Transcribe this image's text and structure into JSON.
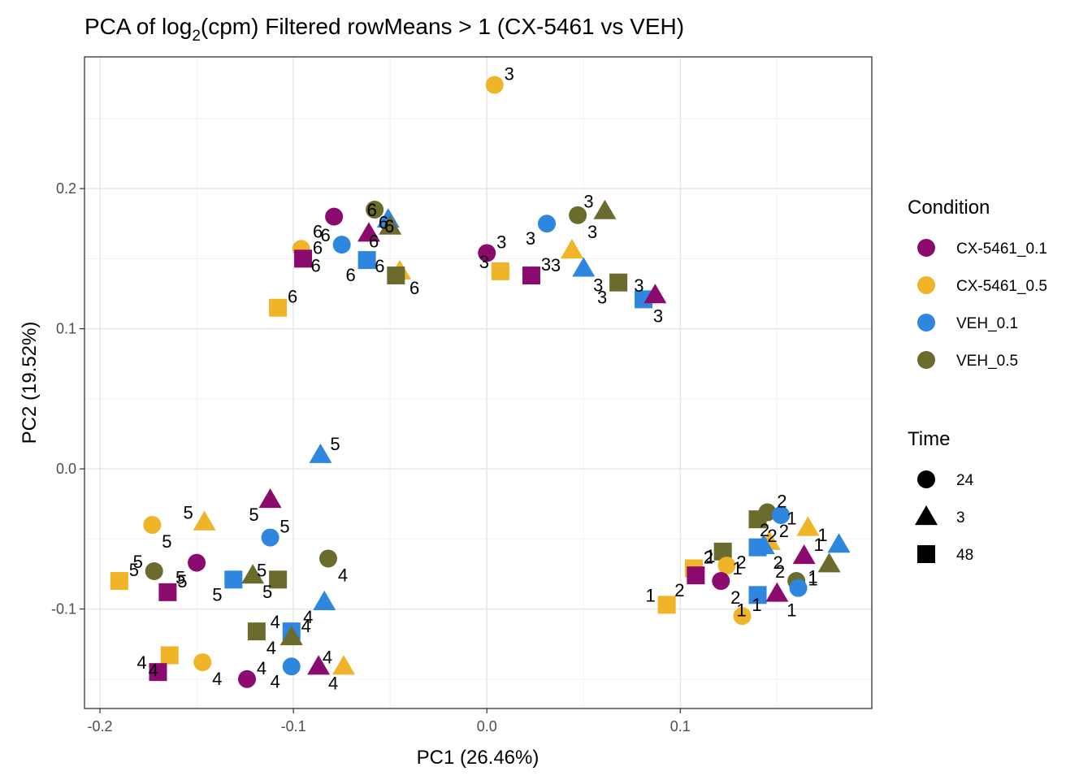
{
  "chart_data": {
    "type": "scatter",
    "title_main": "PCA of log",
    "title_sub": "2",
    "title_rest": "(cpm) Filtered rowMeans > 1 (CX-5461 vs VEH)",
    "xlabel": "PC1 (26.46%)",
    "ylabel": "PC2 (19.52%)",
    "xlim": [
      -0.208,
      0.199
    ],
    "ylim": [
      -0.171,
      0.294
    ],
    "xticks": [
      -0.2,
      -0.1,
      0.0,
      0.1
    ],
    "xtick_labels": [
      "-0.2",
      "-0.1",
      "0.0",
      "0.1"
    ],
    "yticks": [
      -0.1,
      0.0,
      0.1,
      0.2
    ],
    "ytick_labels": [
      "-0.1",
      "0.0",
      "0.1",
      "0.2"
    ],
    "grid": true,
    "legend_position": "right",
    "legend_condition": {
      "title": "Condition",
      "items": [
        {
          "label": "CX-5461_0.1",
          "color": "#8B0A6E"
        },
        {
          "label": "CX-5461_0.5",
          "color": "#F0B429"
        },
        {
          "label": "VEH_0.1",
          "color": "#2E86DE"
        },
        {
          "label": "VEH_0.5",
          "color": "#6B6B2E"
        }
      ]
    },
    "legend_time": {
      "title": "Time",
      "items": [
        {
          "label": "24",
          "shape": "circle"
        },
        {
          "label": "3",
          "shape": "triangle"
        },
        {
          "label": "48",
          "shape": "square"
        }
      ]
    },
    "points": [
      {
        "x": 0.004,
        "y": 0.274,
        "condition": "CX-5461_0.5",
        "time": "24",
        "label": "3"
      },
      {
        "x": -0.079,
        "y": 0.18,
        "condition": "CX-5461_0.1",
        "time": "24",
        "label": "6"
      },
      {
        "x": -0.058,
        "y": 0.185,
        "condition": "VEH_0.5",
        "time": "24",
        "label": "6"
      },
      {
        "x": -0.051,
        "y": 0.178,
        "condition": "VEH_0.1",
        "time": "3",
        "label": "6"
      },
      {
        "x": -0.061,
        "y": 0.168,
        "condition": "CX-5461_0.1",
        "time": "3",
        "label": "6"
      },
      {
        "x": -0.05,
        "y": 0.173,
        "condition": "VEH_0.5",
        "time": "3",
        "label": "6"
      },
      {
        "x": -0.096,
        "y": 0.157,
        "condition": "CX-5461_0.5",
        "time": "24",
        "label": "6"
      },
      {
        "x": -0.075,
        "y": 0.16,
        "condition": "VEH_0.1",
        "time": "24",
        "label": "6"
      },
      {
        "x": -0.095,
        "y": 0.15,
        "condition": "CX-5461_0.1",
        "time": "48",
        "label": "6"
      },
      {
        "x": -0.062,
        "y": 0.149,
        "condition": "VEH_0.1",
        "time": "48",
        "label": "6"
      },
      {
        "x": -0.045,
        "y": 0.141,
        "condition": "CX-5461_0.5",
        "time": "3",
        "label": "6"
      },
      {
        "x": -0.047,
        "y": 0.138,
        "condition": "VEH_0.5",
        "time": "48",
        "label": "6"
      },
      {
        "x": -0.108,
        "y": 0.115,
        "condition": "CX-5461_0.5",
        "time": "48",
        "label": "6"
      },
      {
        "x": 0.031,
        "y": 0.175,
        "condition": "VEH_0.1",
        "time": "24",
        "label": "3"
      },
      {
        "x": 0.047,
        "y": 0.181,
        "condition": "VEH_0.5",
        "time": "24",
        "label": "3"
      },
      {
        "x": 0.061,
        "y": 0.184,
        "condition": "VEH_0.5",
        "time": "3",
        "label": "3"
      },
      {
        "x": 0.0,
        "y": 0.154,
        "condition": "CX-5461_0.1",
        "time": "24",
        "label": "3"
      },
      {
        "x": 0.044,
        "y": 0.156,
        "condition": "CX-5461_0.5",
        "time": "3",
        "label": "3"
      },
      {
        "x": 0.05,
        "y": 0.143,
        "condition": "VEH_0.1",
        "time": "3",
        "label": "3"
      },
      {
        "x": 0.007,
        "y": 0.141,
        "condition": "CX-5461_0.5",
        "time": "48",
        "label": "3"
      },
      {
        "x": 0.023,
        "y": 0.138,
        "condition": "CX-5461_0.1",
        "time": "48",
        "label": "3"
      },
      {
        "x": 0.068,
        "y": 0.133,
        "condition": "VEH_0.5",
        "time": "48",
        "label": "3"
      },
      {
        "x": 0.081,
        "y": 0.121,
        "condition": "VEH_0.1",
        "time": "48",
        "label": "3"
      },
      {
        "x": 0.087,
        "y": 0.124,
        "condition": "CX-5461_0.1",
        "time": "3",
        "label": "3"
      },
      {
        "x": -0.086,
        "y": 0.01,
        "condition": "VEH_0.1",
        "time": "3",
        "label": "5"
      },
      {
        "x": -0.112,
        "y": -0.022,
        "condition": "CX-5461_0.1",
        "time": "3",
        "label": "5"
      },
      {
        "x": -0.173,
        "y": -0.04,
        "condition": "CX-5461_0.5",
        "time": "24",
        "label": "5"
      },
      {
        "x": -0.146,
        "y": -0.038,
        "condition": "CX-5461_0.5",
        "time": "3",
        "label": "5"
      },
      {
        "x": -0.112,
        "y": -0.049,
        "condition": "VEH_0.1",
        "time": "24",
        "label": "5"
      },
      {
        "x": -0.15,
        "y": -0.067,
        "condition": "CX-5461_0.1",
        "time": "24",
        "label": "5"
      },
      {
        "x": -0.082,
        "y": -0.064,
        "condition": "VEH_0.5",
        "time": "24",
        "label": "4"
      },
      {
        "x": -0.172,
        "y": -0.073,
        "condition": "VEH_0.5",
        "time": "24",
        "label": "5"
      },
      {
        "x": -0.19,
        "y": -0.08,
        "condition": "CX-5461_0.5",
        "time": "48",
        "label": "5"
      },
      {
        "x": -0.131,
        "y": -0.079,
        "condition": "VEH_0.1",
        "time": "48",
        "label": "5"
      },
      {
        "x": -0.121,
        "y": -0.076,
        "condition": "VEH_0.5",
        "time": "3",
        "label": "5"
      },
      {
        "x": -0.108,
        "y": -0.079,
        "condition": "VEH_0.5",
        "time": "48",
        "label": "5"
      },
      {
        "x": -0.165,
        "y": -0.088,
        "condition": "CX-5461_0.1",
        "time": "48",
        "label": "5"
      },
      {
        "x": -0.084,
        "y": -0.095,
        "condition": "VEH_0.1",
        "time": "3",
        "label": "4"
      },
      {
        "x": -0.119,
        "y": -0.116,
        "condition": "VEH_0.5",
        "time": "48",
        "label": "4"
      },
      {
        "x": -0.101,
        "y": -0.116,
        "condition": "VEH_0.1",
        "time": "48",
        "label": "4"
      },
      {
        "x": -0.101,
        "y": -0.12,
        "condition": "VEH_0.5",
        "time": "3",
        "label": "4"
      },
      {
        "x": -0.164,
        "y": -0.133,
        "condition": "CX-5461_0.5",
        "time": "48",
        "label": "4"
      },
      {
        "x": -0.147,
        "y": -0.138,
        "condition": "CX-5461_0.5",
        "time": "24",
        "label": "4"
      },
      {
        "x": -0.17,
        "y": -0.145,
        "condition": "CX-5461_0.1",
        "time": "48",
        "label": "4"
      },
      {
        "x": -0.124,
        "y": -0.15,
        "condition": "CX-5461_0.1",
        "time": "24",
        "label": "4"
      },
      {
        "x": -0.101,
        "y": -0.141,
        "condition": "VEH_0.1",
        "time": "24",
        "label": "4"
      },
      {
        "x": -0.087,
        "y": -0.141,
        "condition": "CX-5461_0.1",
        "time": "3",
        "label": "4"
      },
      {
        "x": -0.074,
        "y": -0.141,
        "condition": "CX-5461_0.5",
        "time": "3",
        "label": "4"
      },
      {
        "x": 0.145,
        "y": -0.031,
        "condition": "VEH_0.5",
        "time": "24",
        "label": "2"
      },
      {
        "x": 0.152,
        "y": -0.033,
        "condition": "VEH_0.1",
        "time": "24",
        "label": "2"
      },
      {
        "x": 0.14,
        "y": -0.036,
        "condition": "VEH_0.5",
        "time": "48",
        "label": "2"
      },
      {
        "x": 0.166,
        "y": -0.042,
        "condition": "CX-5461_0.5",
        "time": "3",
        "label": "1"
      },
      {
        "x": 0.146,
        "y": -0.052,
        "condition": "CX-5461_0.5",
        "time": "3",
        "label": "2"
      },
      {
        "x": 0.14,
        "y": -0.056,
        "condition": "VEH_0.1",
        "time": "48",
        "label": "2"
      },
      {
        "x": 0.143,
        "y": -0.055,
        "condition": "VEH_0.1",
        "time": "3",
        "label": "2"
      },
      {
        "x": 0.182,
        "y": -0.054,
        "condition": "VEH_0.1",
        "time": "3",
        "label": "1"
      },
      {
        "x": 0.164,
        "y": -0.062,
        "condition": "CX-5461_0.1",
        "time": "3",
        "label": "1"
      },
      {
        "x": 0.177,
        "y": -0.068,
        "condition": "VEH_0.5",
        "time": "3",
        "label": "1"
      },
      {
        "x": 0.122,
        "y": -0.059,
        "condition": "VEH_0.5",
        "time": "48",
        "label": "1"
      },
      {
        "x": 0.124,
        "y": -0.069,
        "condition": "CX-5461_0.5",
        "time": "24",
        "label": "1"
      },
      {
        "x": 0.107,
        "y": -0.071,
        "condition": "CX-5461_0.5",
        "time": "48",
        "label": "2"
      },
      {
        "x": 0.108,
        "y": -0.076,
        "condition": "CX-5461_0.1",
        "time": "48",
        "label": "2"
      },
      {
        "x": 0.121,
        "y": -0.08,
        "condition": "CX-5461_0.1",
        "time": "24",
        "label": "2"
      },
      {
        "x": 0.16,
        "y": -0.08,
        "condition": "VEH_0.5",
        "time": "24",
        "label": "2"
      },
      {
        "x": 0.161,
        "y": -0.085,
        "condition": "VEH_0.1",
        "time": "24",
        "label": "1"
      },
      {
        "x": 0.14,
        "y": -0.09,
        "condition": "VEH_0.1",
        "time": "48",
        "label": "1"
      },
      {
        "x": 0.15,
        "y": -0.089,
        "condition": "CX-5461_0.1",
        "time": "3",
        "label": "1"
      },
      {
        "x": 0.093,
        "y": -0.097,
        "condition": "CX-5461_0.5",
        "time": "48",
        "label": "1"
      },
      {
        "x": 0.132,
        "y": -0.105,
        "condition": "CX-5461_0.5",
        "time": "24",
        "label": "1"
      }
    ]
  }
}
